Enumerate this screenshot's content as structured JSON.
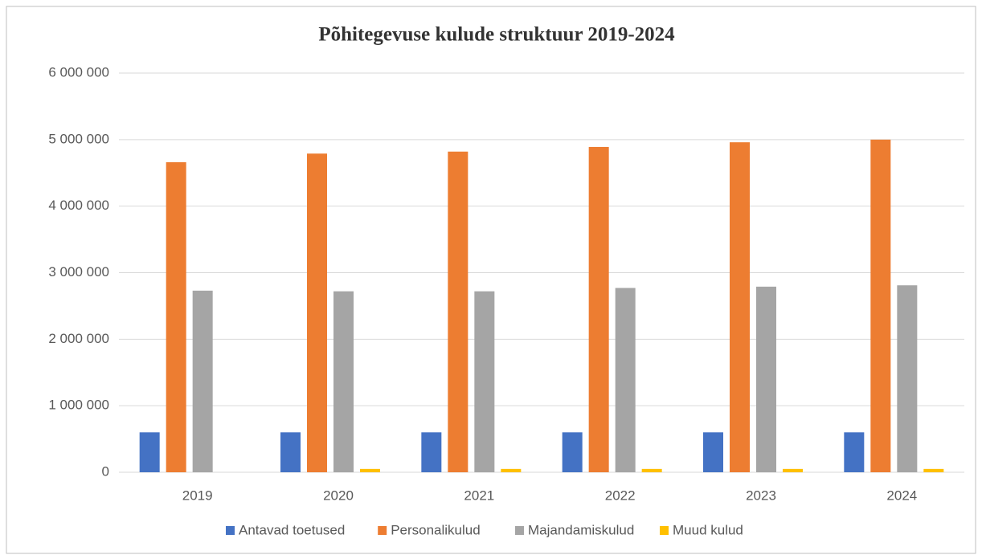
{
  "chart_data": {
    "type": "bar",
    "title": "Põhitegevuse kulude struktuur 2019-2024",
    "categories": [
      "2019",
      "2020",
      "2021",
      "2022",
      "2023",
      "2024"
    ],
    "series": [
      {
        "name": "Antavad toetused",
        "color": "#4472c4",
        "values": [
          600000,
          600000,
          600000,
          600000,
          600000,
          600000
        ]
      },
      {
        "name": "Personalikulud",
        "color": "#ed7d31",
        "values": [
          4660000,
          4790000,
          4820000,
          4890000,
          4960000,
          5000000
        ]
      },
      {
        "name": "Majandamiskulud",
        "color": "#a5a5a5",
        "values": [
          2730000,
          2720000,
          2720000,
          2770000,
          2790000,
          2810000
        ]
      },
      {
        "name": "Muud kulud",
        "color": "#ffc000",
        "values": [
          0,
          50000,
          50000,
          50000,
          50000,
          50000
        ]
      }
    ],
    "ylim": [
      0,
      6000000
    ],
    "yticks": [
      0,
      {
        "value": 1000000,
        "label": "1 000 000"
      },
      {
        "value": 2000000,
        "label": "2 000 000"
      },
      {
        "value": 3000000,
        "label": "3 000 000"
      },
      {
        "value": 4000000,
        "label": "4 000 000"
      },
      {
        "value": 5000000,
        "label": "5 000 000"
      },
      {
        "value": 6000000,
        "label": "6 000 000"
      }
    ],
    "grid": true,
    "legend": "bottom"
  }
}
